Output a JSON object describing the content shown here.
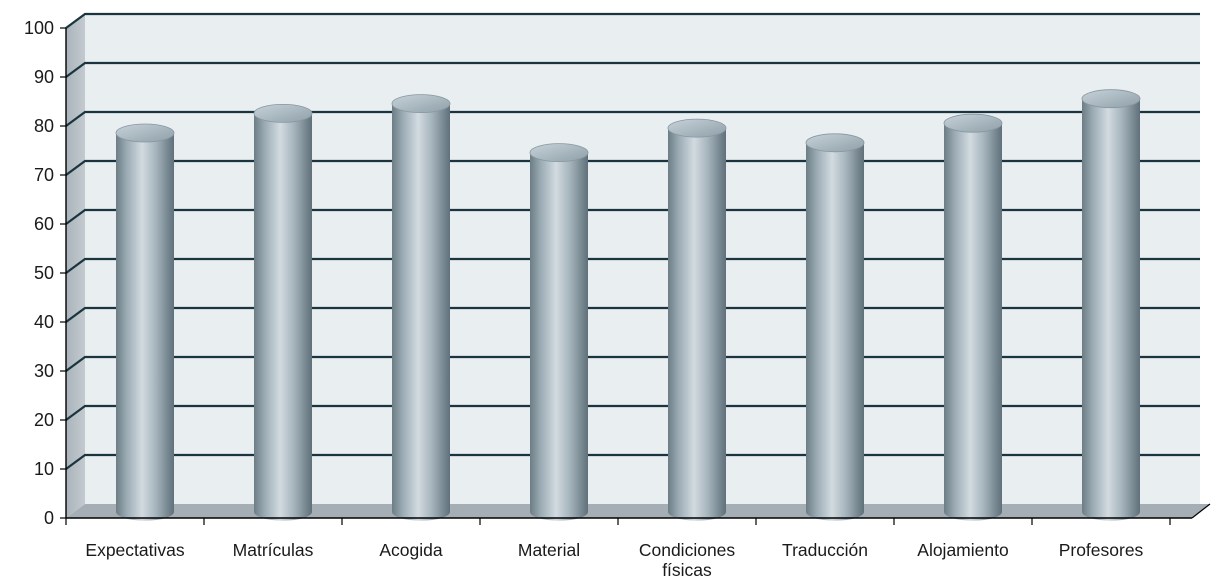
{
  "chart_data": {
    "type": "bar",
    "style": "3d-cylinder",
    "title": "",
    "xlabel": "",
    "ylabel": "",
    "categories": [
      "Expectativas",
      "Matrículas",
      "Acogida",
      "Material",
      "Condiciones físicas",
      "Traducción",
      "Alojamiento",
      "Profesores"
    ],
    "category_lines": [
      [
        "Expectativas"
      ],
      [
        "Matrículas"
      ],
      [
        "Acogida"
      ],
      [
        "Material"
      ],
      [
        "Condiciones",
        "físicas"
      ],
      [
        "Traducción"
      ],
      [
        "Alojamiento"
      ],
      [
        "Profesores"
      ]
    ],
    "values": [
      77,
      81,
      83,
      73,
      78,
      75,
      79,
      84
    ],
    "ylim": [
      0,
      100
    ],
    "yticks": [
      "0",
      "10",
      "20",
      "30",
      "40",
      "50",
      "60",
      "70",
      "80",
      "90",
      "100"
    ],
    "grid": true,
    "legend": "none",
    "colors": {
      "bar_light": "#d2dbe0",
      "bar_mid": "#a3b2ba",
      "bar_dark": "#6c7d86",
      "bar_top": "#b7c4cb",
      "plot_background": "#e9eef1",
      "side_wall": "#b0b9bf",
      "floor": "#a5aeb4",
      "grid_line": "#1b3540",
      "axis": "#000000"
    }
  }
}
